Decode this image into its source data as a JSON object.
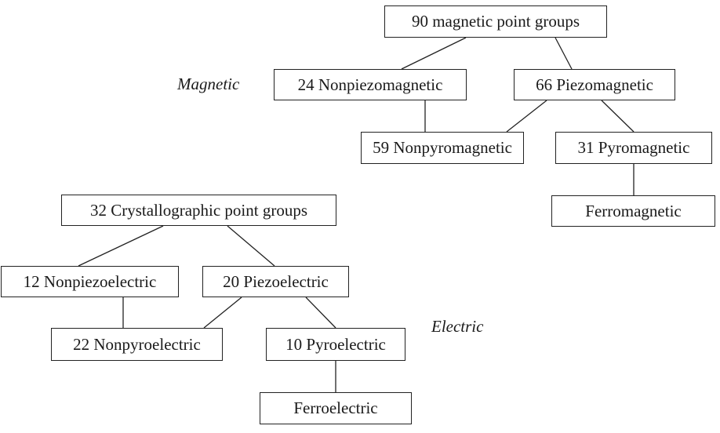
{
  "magnetic": {
    "section_label": "Magnetic",
    "root": "90 magnetic point groups",
    "nonpiezo": "24 Nonpiezomagnetic",
    "piezo": "66 Piezomagnetic",
    "nonpyro": "59 Nonpyromagnetic",
    "pyro": "31 Pyromagnetic",
    "ferro": "Ferromagnetic"
  },
  "electric": {
    "section_label": "Electric",
    "root": "32 Crystallographic point groups",
    "nonpiezo": "12 Nonpiezoelectric",
    "piezo": "20 Piezoelectric",
    "nonpyro": "22 Nonpyroelectric",
    "pyro": "10 Pyroelectric",
    "ferro": "Ferroelectric"
  }
}
